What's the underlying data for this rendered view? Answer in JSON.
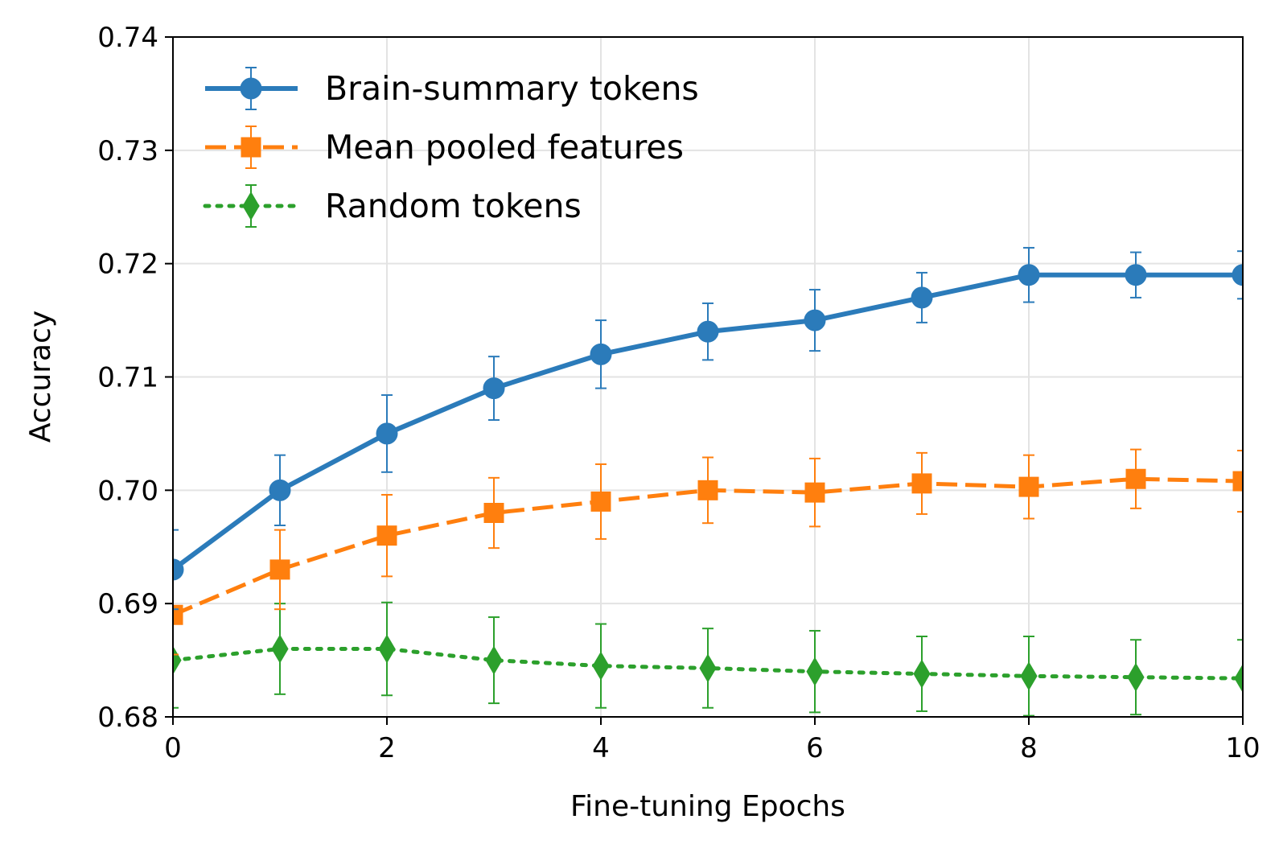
{
  "chart_data": {
    "type": "line",
    "title": "",
    "xlabel": "Fine-tuning Epochs",
    "ylabel": "Accuracy",
    "xlim": [
      0,
      10
    ],
    "ylim": [
      0.68,
      0.74
    ],
    "xticks": [
      "0",
      "2",
      "4",
      "6",
      "8",
      "10"
    ],
    "yticks": [
      "0.68",
      "0.69",
      "0.70",
      "0.71",
      "0.72",
      "0.73",
      "0.74"
    ],
    "grid": true,
    "legend_position": "top-left",
    "x": [
      0,
      1,
      2,
      3,
      4,
      5,
      6,
      7,
      8,
      9,
      10
    ],
    "series": [
      {
        "name": "Brain-summary tokens",
        "color": "#2b7bba",
        "line_style": "solid",
        "marker": "circle",
        "values": [
          0.693,
          0.7,
          0.705,
          0.709,
          0.712,
          0.714,
          0.715,
          0.717,
          0.719,
          0.719,
          0.719
        ],
        "errors": [
          0.0035,
          0.0031,
          0.0034,
          0.0028,
          0.003,
          0.0025,
          0.0027,
          0.0022,
          0.0024,
          0.002,
          0.0021
        ]
      },
      {
        "name": "Mean pooled features",
        "color": "#ff7f0e",
        "line_style": "dashed",
        "marker": "square",
        "values": [
          0.689,
          0.693,
          0.696,
          0.698,
          0.699,
          0.7,
          0.6998,
          0.7006,
          0.7003,
          0.701,
          0.7008
        ],
        "errors": [
          0.0035,
          0.0035,
          0.0036,
          0.0031,
          0.0033,
          0.0029,
          0.003,
          0.0027,
          0.0028,
          0.0026,
          0.0027
        ]
      },
      {
        "name": "Random tokens",
        "color": "#2ca02c",
        "line_style": "dotted",
        "marker": "diamond",
        "values": [
          0.685,
          0.686,
          0.686,
          0.685,
          0.6845,
          0.6843,
          0.684,
          0.6838,
          0.6836,
          0.6835,
          0.6834
        ],
        "errors": [
          0.0042,
          0.004,
          0.0041,
          0.0038,
          0.0037,
          0.0035,
          0.0036,
          0.0033,
          0.0035,
          0.0033,
          0.0034
        ]
      }
    ]
  }
}
